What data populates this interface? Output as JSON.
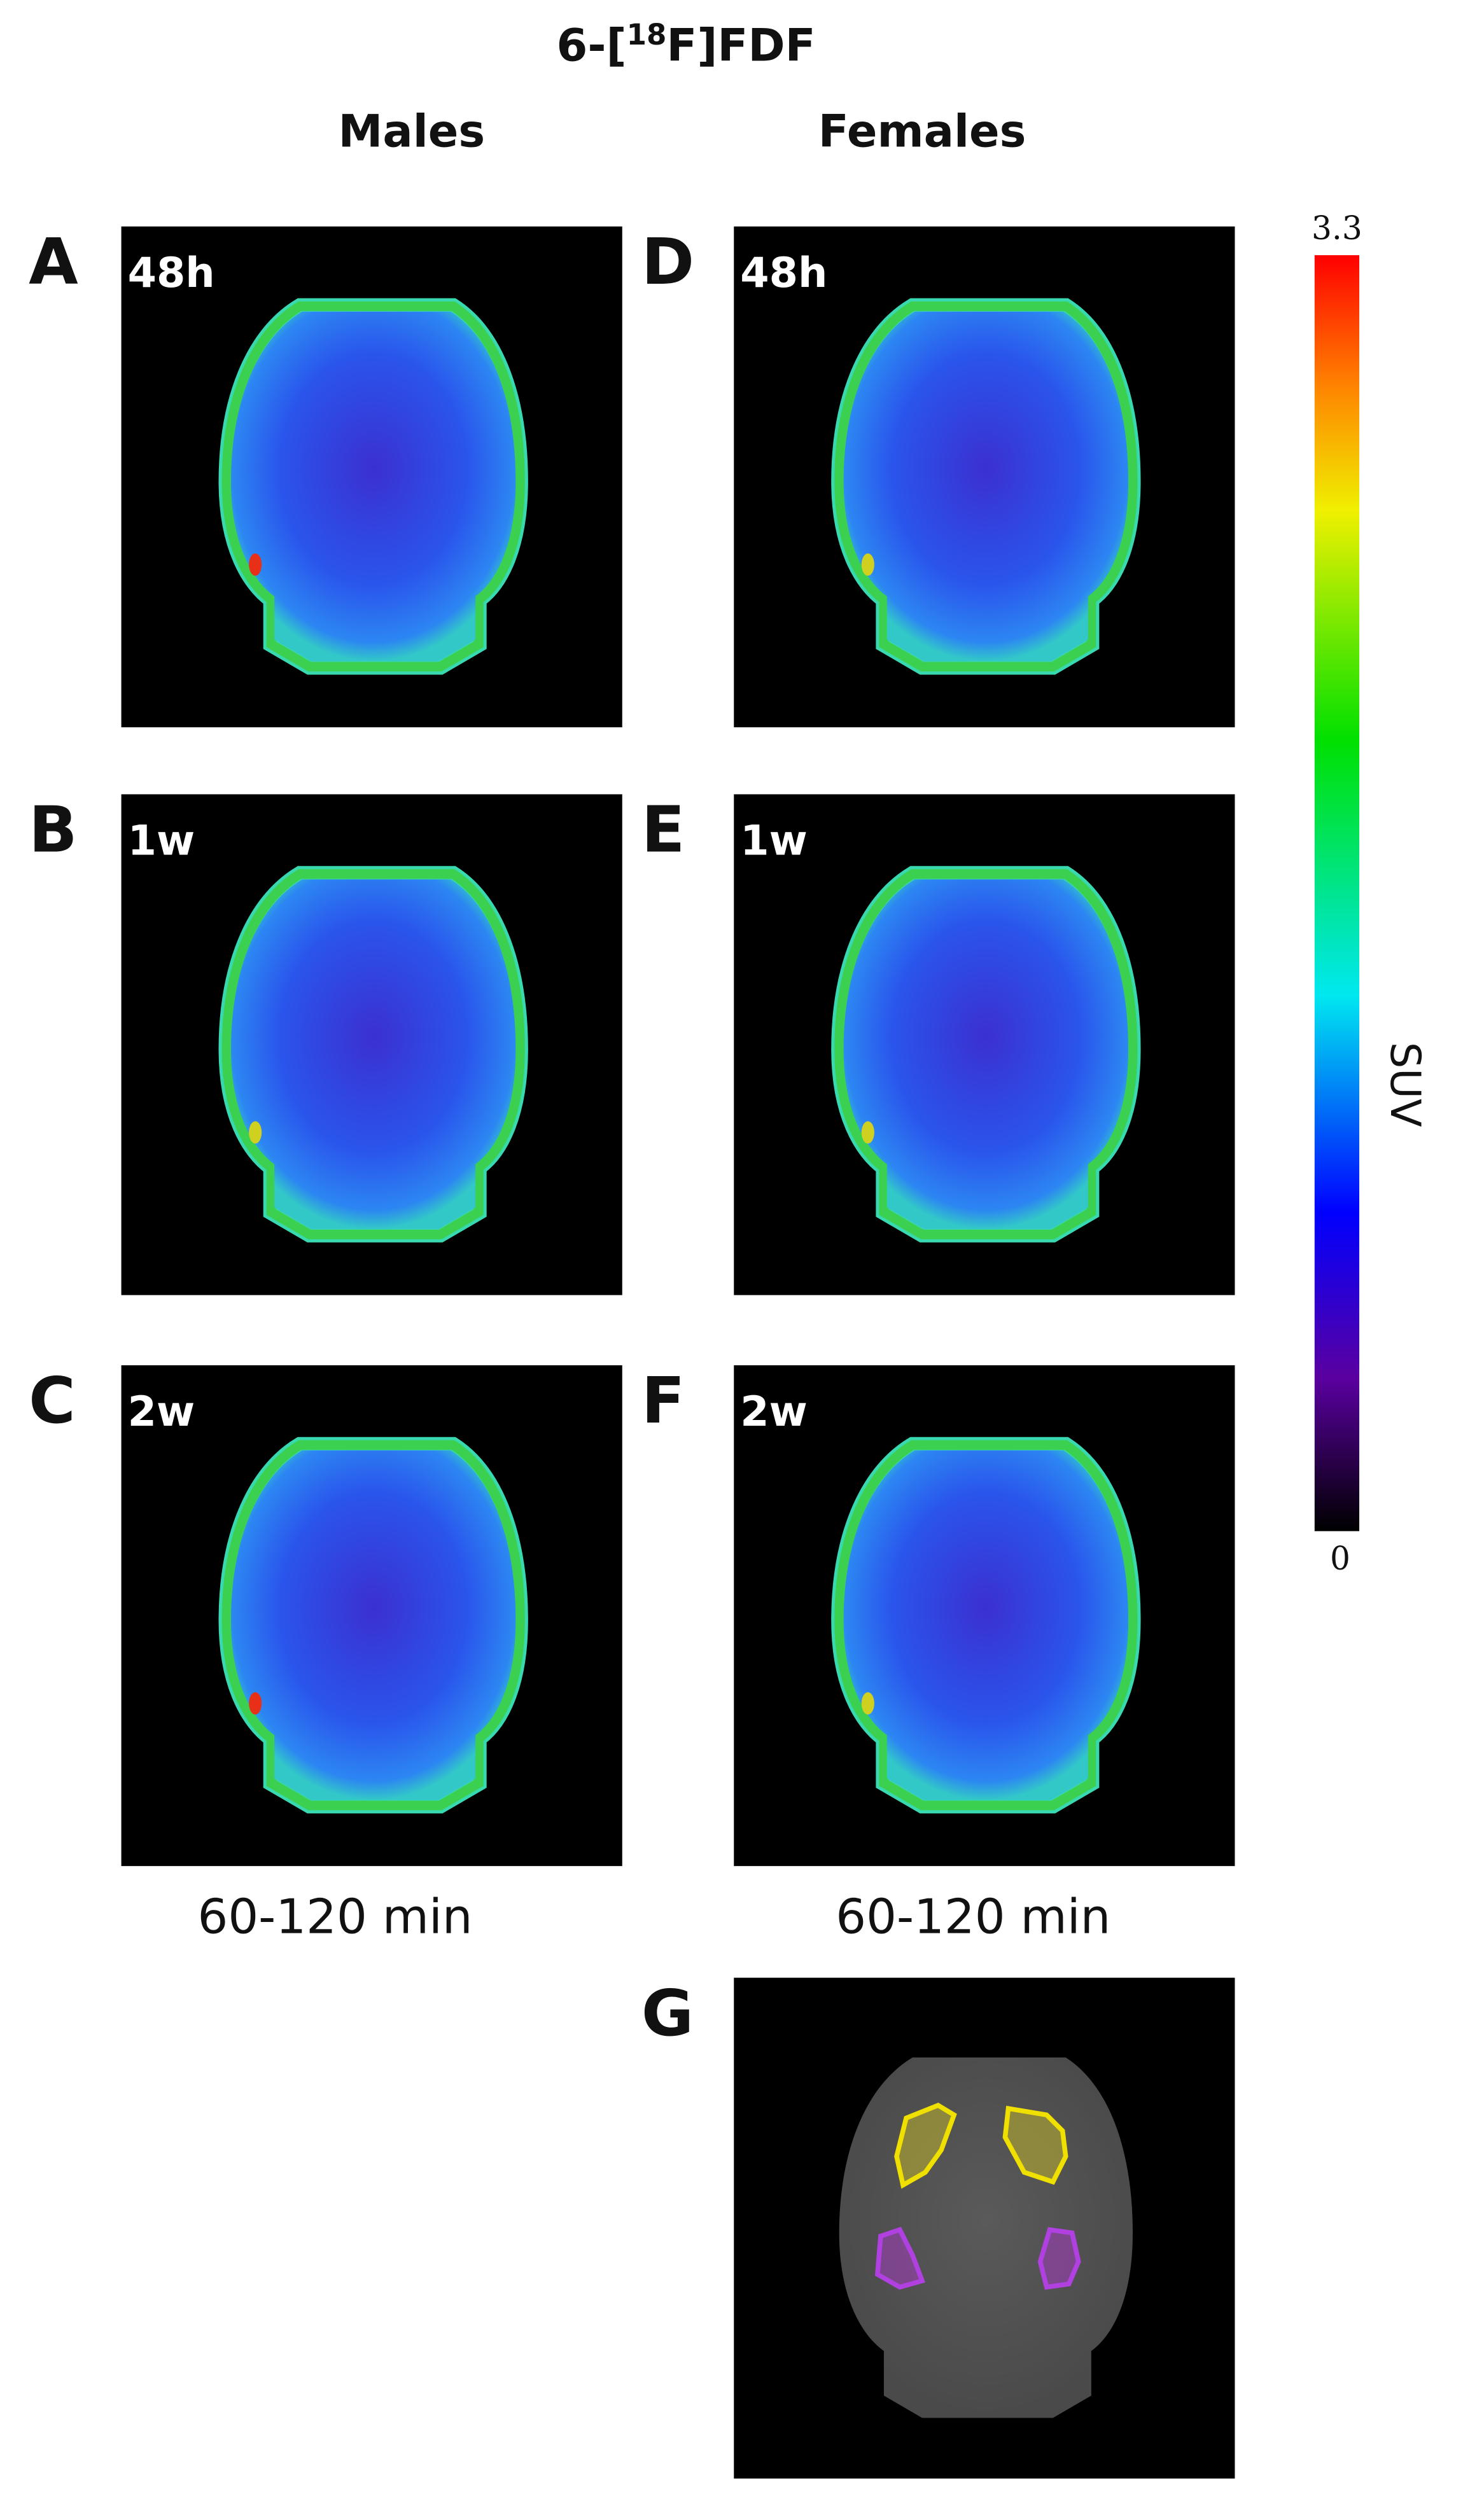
{
  "title": {
    "prefix": "6-[",
    "superscript": "18",
    "suffix": "F]FDF"
  },
  "columns": [
    "Males",
    "Females"
  ],
  "panels": [
    {
      "letter": "A",
      "label": "48h"
    },
    {
      "letter": "B",
      "label": "1w"
    },
    {
      "letter": "C",
      "label": "2w"
    },
    {
      "letter": "D",
      "label": "48h"
    },
    {
      "letter": "E",
      "label": "1w"
    },
    {
      "letter": "F",
      "label": "2w"
    },
    {
      "letter": "G"
    }
  ],
  "footers": [
    "60-120 min",
    "60-120 min"
  ],
  "colorbar": {
    "max": 3.3,
    "min": 0,
    "label": "SUV"
  }
}
